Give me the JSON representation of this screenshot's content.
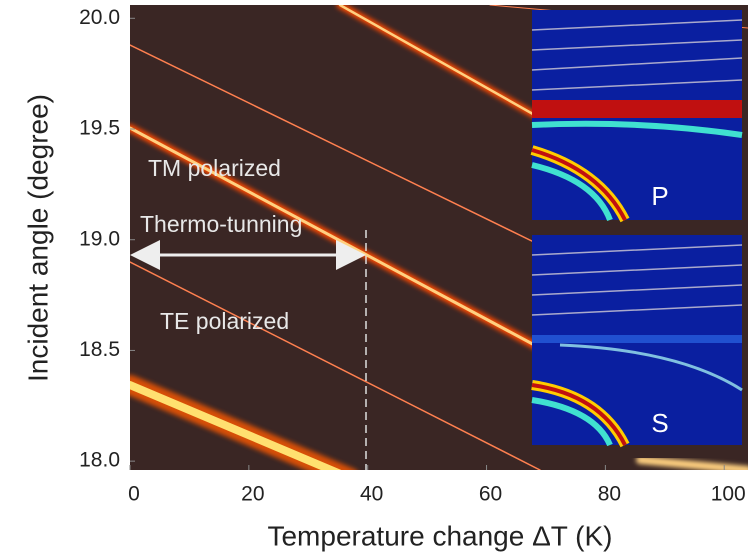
{
  "chart_data": {
    "type": "heatmap",
    "xlabel": "Temperature change ΔT (K)",
    "ylabel": "Incident angle (degree)",
    "xlim": [
      0,
      104
    ],
    "xticks": [
      0,
      20,
      40,
      60,
      80,
      100
    ],
    "ylim": [
      17.96,
      20.06
    ],
    "yticks": [
      {
        "value": 18.0,
        "label": "18.0"
      },
      {
        "value": 18.5,
        "label": "18.5"
      },
      {
        "value": 19.0,
        "label": "19.0"
      },
      {
        "value": 19.5,
        "label": "19.5"
      },
      {
        "value": 20.0,
        "label": "20.0"
      }
    ],
    "annotations": [
      "TM polarized",
      "Thermo-tunning",
      "TE polarized",
      "P",
      "S"
    ]
  }
}
